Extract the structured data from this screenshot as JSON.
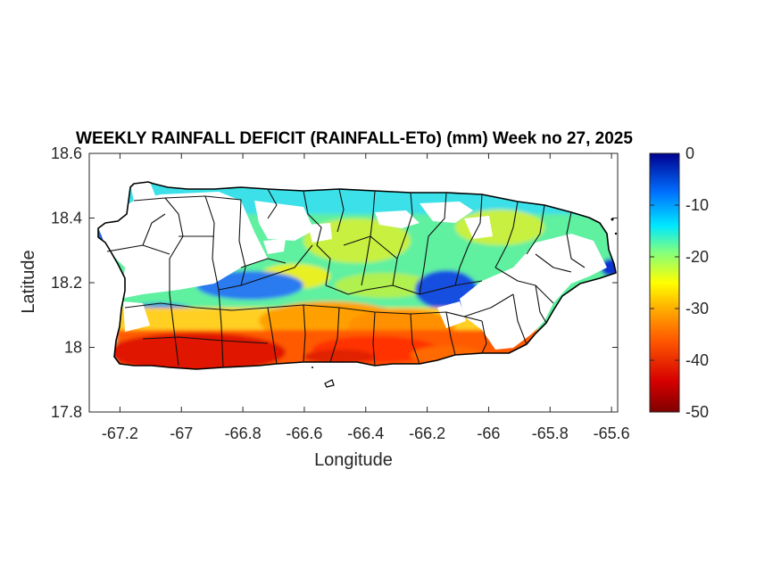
{
  "title": "WEEKLY RAINFALL DEFICIT (RAINFALL-ETo) (mm) Week no 27, 2025",
  "x_label": "Longitude",
  "y_label": "Latitude",
  "x_ticks": [
    "-67.2",
    "-67",
    "-66.8",
    "-66.6",
    "-66.4",
    "-66.2",
    "-66",
    "-65.8",
    "-65.6"
  ],
  "y_ticks": [
    "18.6",
    "18.4",
    "18.2",
    "18",
    "17.8"
  ],
  "colorbar": {
    "ticks": [
      "0",
      "-10",
      "-20",
      "-30",
      "-40",
      "-50"
    ],
    "min": -50,
    "max": 0
  },
  "map": {
    "region": "Puerto Rico",
    "xlim": [
      -67.3,
      -65.58
    ],
    "ylim": [
      17.8,
      18.6
    ],
    "colormap": "jet",
    "field_summary": {
      "south_coast": -45,
      "south_central_interior": -38,
      "central_band": -28,
      "north_central": -20,
      "northeast": -25,
      "northwest_and_east": "no data (white)"
    }
  }
}
